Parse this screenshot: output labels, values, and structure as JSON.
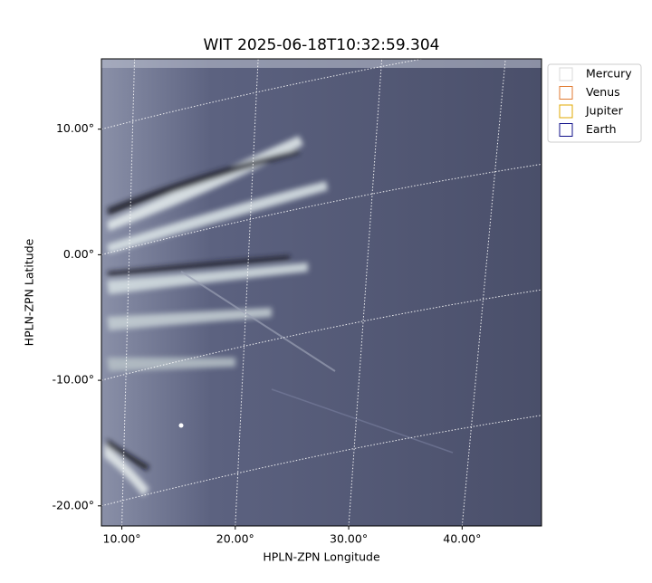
{
  "chart_data": {
    "type": "image",
    "title": "WIT 2025-06-18T10:32:59.304",
    "x_label": "HPLN-ZPN Longitude",
    "y_label": "HPLN-ZPN Latitude",
    "xlim": [
      8.2,
      47.0
    ],
    "ylim": [
      -21.6,
      15.6
    ],
    "xticks": [
      {
        "value": 10,
        "label": "10.00°"
      },
      {
        "value": 20,
        "label": "20.00°"
      },
      {
        "value": 30,
        "label": "30.00°"
      },
      {
        "value": 40,
        "label": "40.00°"
      }
    ],
    "yticks": [
      {
        "value": 10,
        "label": "10.00°"
      },
      {
        "value": 0,
        "label": "0.00°"
      },
      {
        "value": -10,
        "label": "-10.00°"
      },
      {
        "value": -20,
        "label": "-20.00°"
      }
    ],
    "grid": true,
    "legend": {
      "position": "upper right",
      "entries": [
        {
          "name": "Mercury",
          "color": "#d8d8d8"
        },
        {
          "name": "Venus",
          "color": "#e07a30"
        },
        {
          "name": "Jupiter",
          "color": "#e0a800"
        },
        {
          "name": "Earth",
          "color": "#10108a"
        }
      ]
    }
  }
}
